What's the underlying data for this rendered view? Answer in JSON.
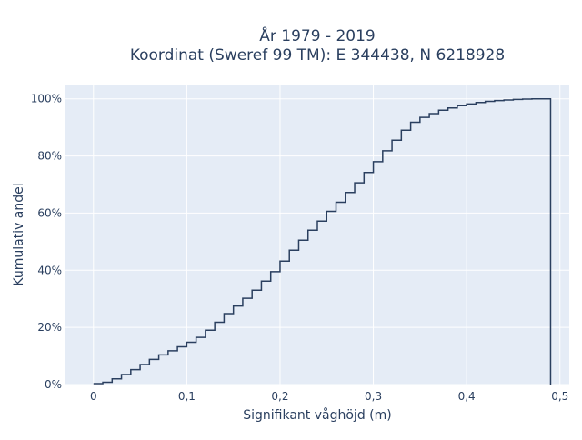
{
  "chart_data": {
    "type": "line",
    "title_line1": "År 1979 - 2019",
    "title_line2": "Koordinat (Sweref 99 TM): E 344438, N 6218928",
    "xlabel": "Signifikant våghöjd (m)",
    "ylabel": "Kumulativ andel",
    "xlim": [
      -0.03,
      0.51
    ],
    "ylim": [
      0,
      1.05
    ],
    "x_ticks": [
      {
        "value": 0,
        "label": "0"
      },
      {
        "value": 0.1,
        "label": "0,1"
      },
      {
        "value": 0.2,
        "label": "0,2"
      },
      {
        "value": 0.3,
        "label": "0,3"
      },
      {
        "value": 0.4,
        "label": "0,4"
      },
      {
        "value": 0.5,
        "label": "0,5"
      }
    ],
    "y_ticks": [
      {
        "value": 0,
        "label": "0%"
      },
      {
        "value": 0.2,
        "label": "20%"
      },
      {
        "value": 0.4,
        "label": "40%"
      },
      {
        "value": 0.6,
        "label": "60%"
      },
      {
        "value": 0.8,
        "label": "80%"
      },
      {
        "value": 1.0,
        "label": "100%"
      }
    ],
    "grid": true,
    "step": true,
    "colors": {
      "plot_bg": "#e5ecf6",
      "grid": "#ffffff",
      "line": "#2a3f5f",
      "text": "#2a3f5f"
    },
    "series": [
      {
        "x": [
          0,
          0.01,
          0.02,
          0.03,
          0.04,
          0.05,
          0.06,
          0.07,
          0.08,
          0.09,
          0.1,
          0.11,
          0.12,
          0.13,
          0.14,
          0.15,
          0.16,
          0.17,
          0.18,
          0.19,
          0.2,
          0.21,
          0.22,
          0.23,
          0.24,
          0.25,
          0.26,
          0.27,
          0.28,
          0.29,
          0.3,
          0.31,
          0.32,
          0.33,
          0.34,
          0.35,
          0.36,
          0.37,
          0.38,
          0.39,
          0.4,
          0.41,
          0.42,
          0.43,
          0.44,
          0.45,
          0.46,
          0.47,
          0.48,
          0.49
        ],
        "y": [
          0.003,
          0.008,
          0.02,
          0.035,
          0.052,
          0.07,
          0.088,
          0.104,
          0.118,
          0.132,
          0.148,
          0.165,
          0.19,
          0.218,
          0.248,
          0.275,
          0.302,
          0.33,
          0.362,
          0.395,
          0.432,
          0.47,
          0.505,
          0.54,
          0.572,
          0.606,
          0.638,
          0.672,
          0.706,
          0.742,
          0.78,
          0.818,
          0.855,
          0.89,
          0.918,
          0.935,
          0.948,
          0.96,
          0.968,
          0.976,
          0.982,
          0.987,
          0.991,
          0.994,
          0.996,
          0.998,
          0.999,
          1.0,
          1.0,
          0
        ]
      }
    ]
  }
}
